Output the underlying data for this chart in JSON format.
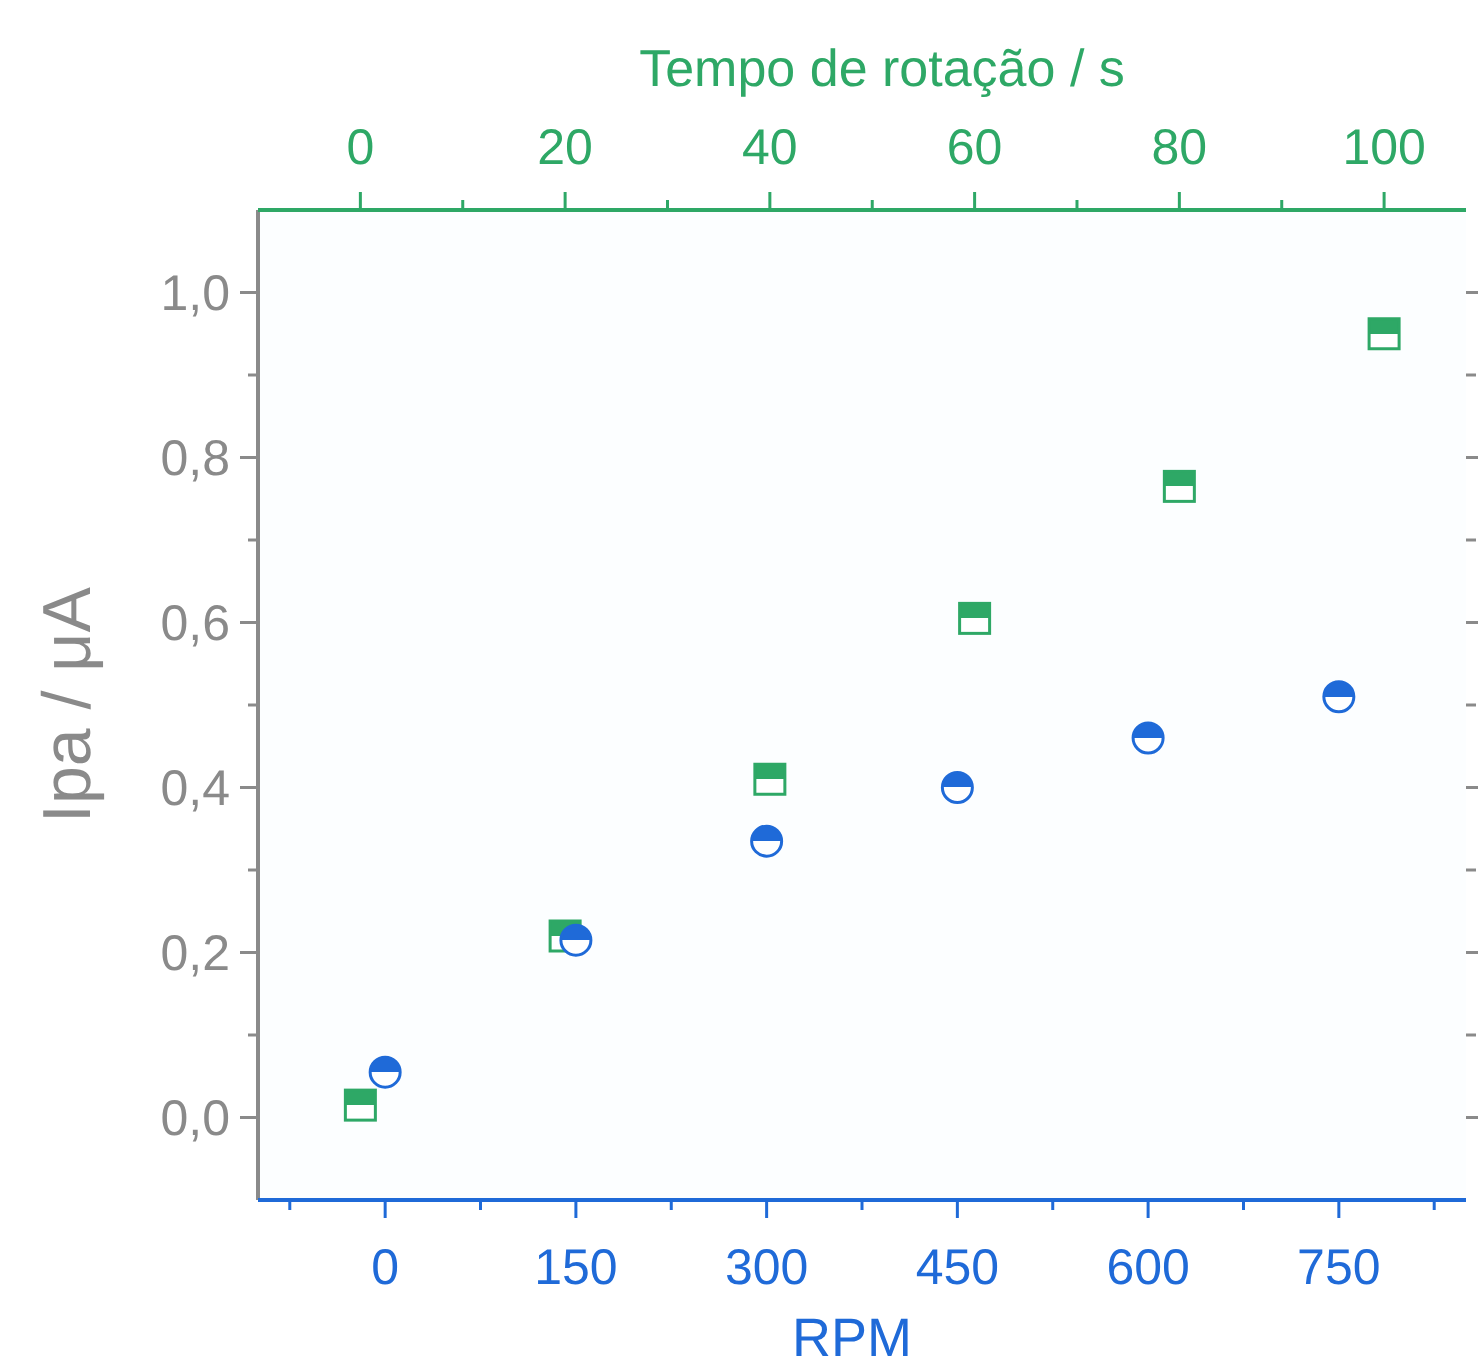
{
  "chart_data": {
    "type": "scatter",
    "xlabel": "RPM",
    "x2label": "Tempo de rotação / s",
    "ylabel": "Ipa / μA",
    "xlim": [
      -100,
      850
    ],
    "xticks": [
      {
        "value": -75,
        "label": null
      },
      0,
      {
        "value": 75,
        "label": null
      },
      150,
      {
        "value": 225,
        "label": null
      },
      300,
      {
        "value": 375,
        "label": null
      },
      450,
      {
        "value": 525,
        "label": null
      },
      600,
      {
        "value": 675,
        "label": null
      },
      750,
      {
        "value": 825,
        "label": null
      }
    ],
    "x2lim": [
      -10,
      108
    ],
    "x2ticks": [
      0,
      {
        "value": 10,
        "label": null
      },
      20,
      {
        "value": 30,
        "label": null
      },
      40,
      {
        "value": 50,
        "label": null
      },
      60,
      {
        "value": 70,
        "label": null
      },
      80,
      {
        "value": 90,
        "label": null
      },
      100
    ],
    "ylim": [
      -0.1,
      1.1
    ],
    "yticks": [
      {
        "value": 0,
        "label": "0,0"
      },
      {
        "value": 0.1,
        "label": null
      },
      {
        "value": 0.2,
        "label": "0,2"
      },
      {
        "value": 0.3,
        "label": null
      },
      {
        "value": 0.4,
        "label": "0,4"
      },
      {
        "value": 0.5,
        "label": null
      },
      {
        "value": 0.6,
        "label": "0,6"
      },
      {
        "value": 0.7,
        "label": null
      },
      {
        "value": 0.8,
        "label": "0,8"
      },
      {
        "value": 0.9,
        "label": null
      },
      {
        "value": 1.0,
        "label": "1,0"
      }
    ],
    "grid": false,
    "series": [
      {
        "color": "#1f6ad8",
        "marker": "circle",
        "x": [
          0,
          150,
          300,
          450,
          600,
          750
        ],
        "values": [
          0.055,
          0.215,
          0.335,
          0.4,
          0.46,
          0.51
        ]
      },
      {
        "color": "#2ea866",
        "marker": "square",
        "axis": "x2",
        "x": [
          0,
          20,
          40,
          60,
          80,
          100
        ],
        "values": [
          0.015,
          0.22,
          0.41,
          0.605,
          0.765,
          0.95
        ]
      }
    ]
  }
}
